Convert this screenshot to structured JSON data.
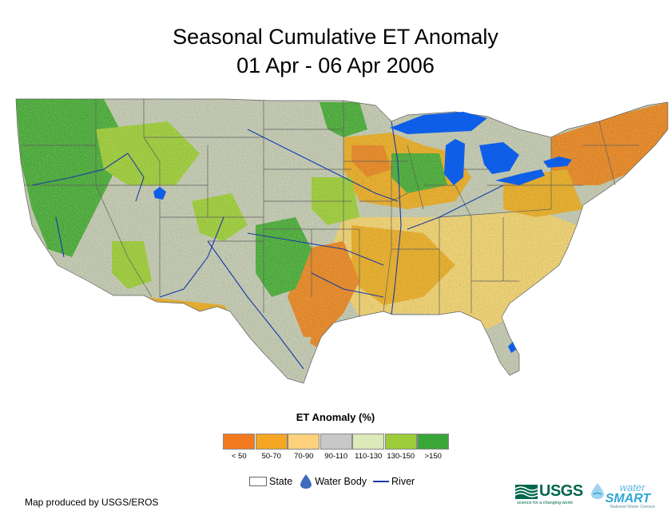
{
  "title": {
    "line1": "Seasonal Cumulative ET Anomaly",
    "line2": "01 Apr - 06 Apr 2006"
  },
  "legend": {
    "title": "ET Anomaly (%)",
    "classes": [
      {
        "label": "< 50",
        "color": "#f47a20"
      },
      {
        "label": "50-70",
        "color": "#f5a623"
      },
      {
        "label": "70-90",
        "color": "#fdd17b"
      },
      {
        "label": "90-110",
        "color": "#c8c8c8"
      },
      {
        "label": "110-130",
        "color": "#dce9b8"
      },
      {
        "label": "130-150",
        "color": "#9ccc3a"
      },
      {
        "label": ">150",
        "color": "#3aa63a"
      }
    ],
    "key": {
      "state": "State",
      "water": "Water Body",
      "river": "River"
    }
  },
  "colors": {
    "water": "#0f5ee8",
    "river": "#1a3aa8",
    "state_border": "#5f5f5f"
  },
  "credit": "Map produced by USGS/EROS",
  "logos": {
    "usgs": "USGS",
    "usgs_tagline": "science for a changing world",
    "ws_water": "water",
    "ws_smart": "SMART",
    "ws_tagline": "National Water Census"
  }
}
